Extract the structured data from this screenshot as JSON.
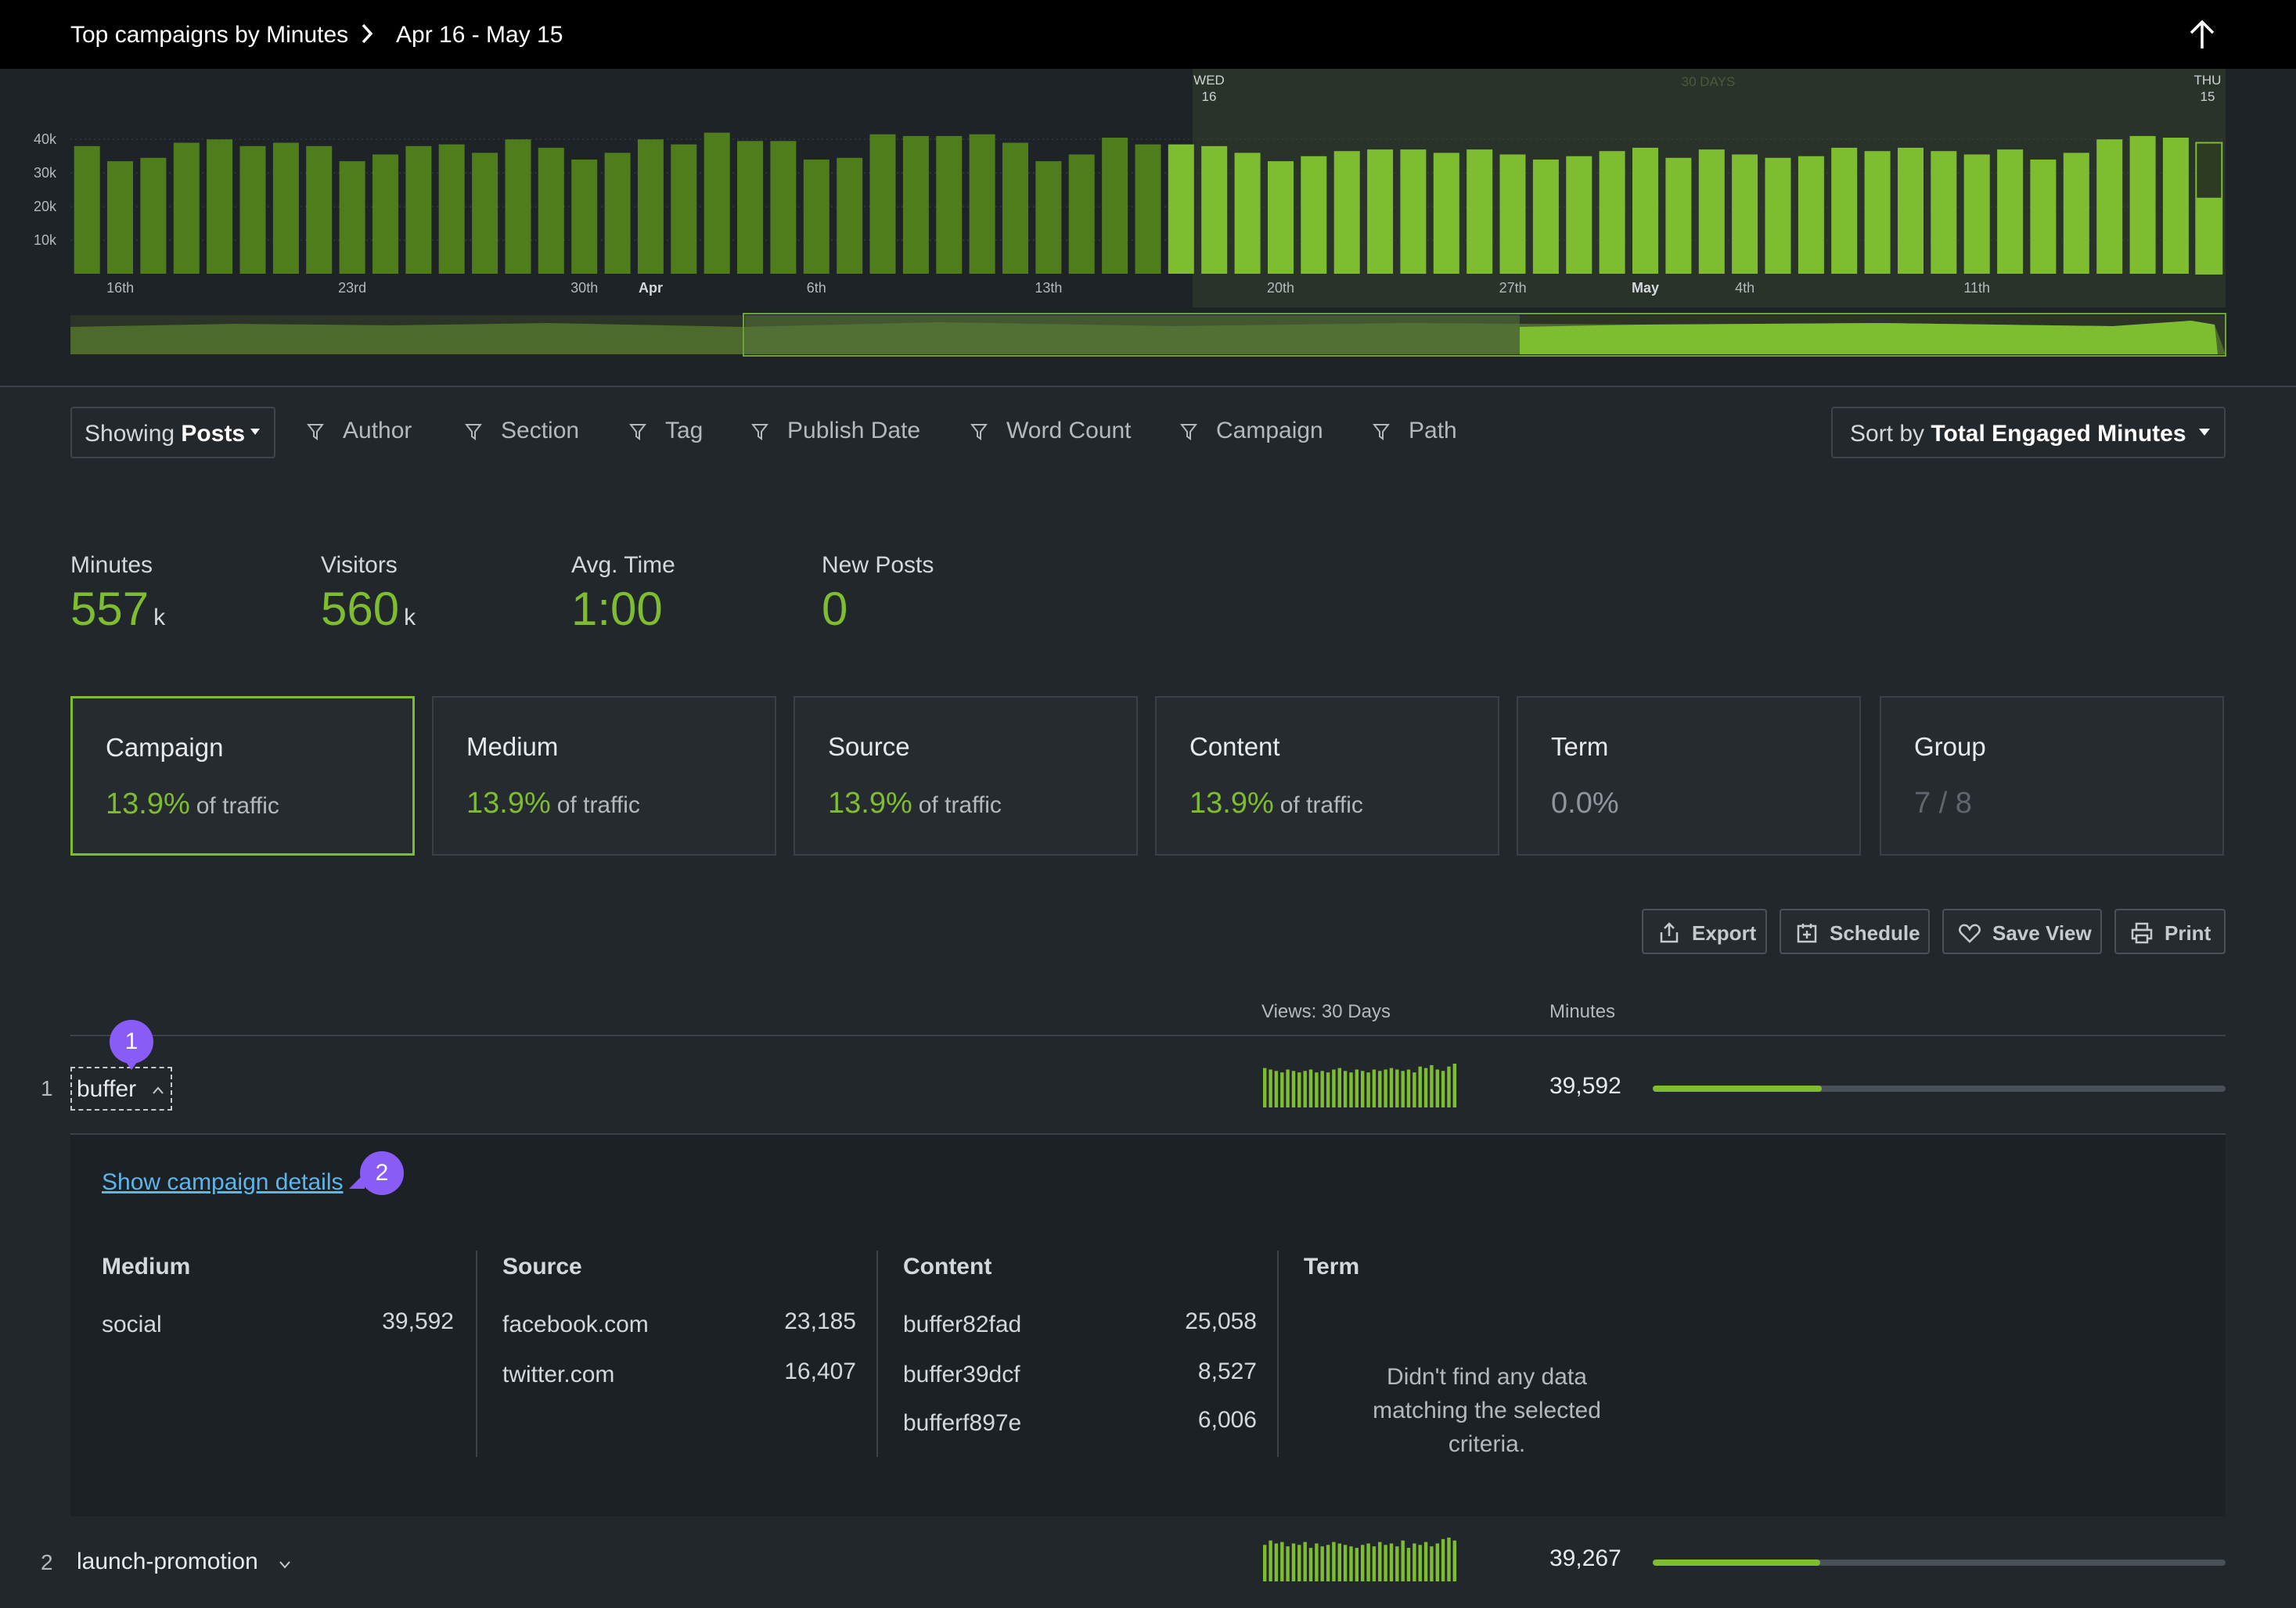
{
  "header": {
    "title": "Top campaigns by Minutes",
    "range": "Apr 16 - May 15"
  },
  "chart_data": {
    "type": "bar",
    "y_ticks": [
      "40k",
      "30k",
      "20k",
      "10k"
    ],
    "x_tick_labels": [
      {
        "label": "16th",
        "index": 1
      },
      {
        "label": "23rd",
        "index": 8
      },
      {
        "label": "30th",
        "index": 15
      },
      {
        "label": "Apr",
        "index": 17,
        "bold": true
      },
      {
        "label": "6th",
        "index": 22
      },
      {
        "label": "13th",
        "index": 29
      },
      {
        "label": "20th",
        "index": 36
      },
      {
        "label": "27th",
        "index": 43
      },
      {
        "label": "May",
        "index": 47,
        "bold": true
      },
      {
        "label": "4th",
        "index": 50
      },
      {
        "label": "11th",
        "index": 57
      }
    ],
    "selection_start_label": [
      "WED",
      "16"
    ],
    "selection_end_label": [
      "THU",
      "15"
    ],
    "selection_caption": "30 DAYS",
    "selection_start_index": 33,
    "ylim": [
      0,
      44000
    ],
    "values": [
      38000,
      33500,
      34500,
      39000,
      40000,
      38000,
      39000,
      38000,
      33500,
      35500,
      38000,
      38500,
      36000,
      40000,
      37500,
      34000,
      36000,
      40000,
      38500,
      42000,
      39500,
      39500,
      34000,
      34500,
      41500,
      41000,
      41000,
      41500,
      39000,
      33500,
      35500,
      40500,
      38500,
      38500,
      38000,
      36000,
      33500,
      35000,
      36500,
      37000,
      37000,
      36000,
      37000,
      35500,
      34000,
      35000,
      36500,
      37500,
      34500,
      37000,
      35500,
      34500,
      35000,
      37500,
      36500,
      37500,
      36500,
      35500,
      37000,
      34000,
      36000,
      40000,
      41000,
      40500,
      39000
    ],
    "partial_last_bar": true,
    "colors": {
      "before": "#4f7d1c",
      "selected": "#7dbd2f"
    }
  },
  "filters": {
    "showing_prefix": "Showing",
    "showing_value": "Posts",
    "items": [
      "Author",
      "Section",
      "Tag",
      "Publish Date",
      "Word Count",
      "Campaign",
      "Path"
    ],
    "sort_prefix": "Sort by",
    "sort_value": "Total Engaged Minutes"
  },
  "stats": {
    "minutes": {
      "label": "Minutes",
      "value": "557",
      "unit": "k"
    },
    "visitors": {
      "label": "Visitors",
      "value": "560",
      "unit": "k"
    },
    "avg_time": {
      "label": "Avg. Time",
      "value": "1:00"
    },
    "new_posts": {
      "label": "New Posts",
      "value": "0"
    }
  },
  "cards": {
    "campaign": {
      "label": "Campaign",
      "pct": "13.9%",
      "suffix": "of traffic"
    },
    "medium": {
      "label": "Medium",
      "pct": "13.9%",
      "suffix": "of traffic"
    },
    "source": {
      "label": "Source",
      "pct": "13.9%",
      "suffix": "of traffic"
    },
    "content": {
      "label": "Content",
      "pct": "13.9%",
      "suffix": "of traffic"
    },
    "term": {
      "label": "Term",
      "pct": "0.0%"
    },
    "group": {
      "label": "Group",
      "pct": "7 / 8"
    }
  },
  "actions": {
    "export": "Export",
    "schedule": "Schedule",
    "save_view": "Save View",
    "print": "Print"
  },
  "table": {
    "col_views": "Views: 30 Days",
    "col_minutes": "Minutes",
    "rows": [
      {
        "num": "1",
        "name": "buffer",
        "minutes": "39,592",
        "bar_fraction": 0.295,
        "spark": [
          27,
          26,
          25,
          24,
          26,
          25,
          24,
          25,
          26,
          24,
          25,
          24,
          26,
          27,
          25,
          24,
          26,
          25,
          24,
          26,
          25,
          26,
          27,
          26,
          25,
          26,
          24,
          28,
          27,
          29,
          26,
          25,
          28,
          30
        ]
      },
      {
        "num": "2",
        "name": "launch-promotion",
        "minutes": "39,267",
        "bar_fraction": 0.292,
        "spark": [
          25,
          28,
          26,
          27,
          24,
          26,
          25,
          27,
          23,
          26,
          24,
          25,
          27,
          26,
          25,
          24,
          23,
          25,
          26,
          24,
          27,
          25,
          26,
          24,
          28,
          23,
          26,
          25,
          27,
          24,
          26,
          29,
          30,
          28
        ]
      }
    ]
  },
  "details": {
    "link": "Show campaign details",
    "medium_head": "Medium",
    "source_head": "Source",
    "content_head": "Content",
    "term_head": "Term",
    "medium": [
      {
        "label": "social",
        "value": "39,592"
      }
    ],
    "source": [
      {
        "label": "facebook.com",
        "value": "23,185"
      },
      {
        "label": "twitter.com",
        "value": "16,407"
      }
    ],
    "content": [
      {
        "label": "buffer82fad",
        "value": "25,058"
      },
      {
        "label": "buffer39dcf",
        "value": "8,527"
      },
      {
        "label": "bufferf897e",
        "value": "6,006"
      }
    ],
    "term_empty": "Didn't find any data matching the selected criteria."
  },
  "badges": [
    "1",
    "2"
  ]
}
